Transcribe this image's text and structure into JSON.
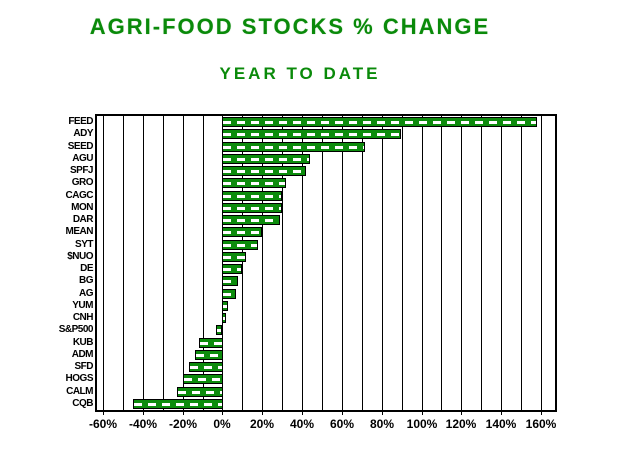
{
  "title": "AGRI-FOOD STOCKS % CHANGE",
  "subtitle": "YEAR TO DATE",
  "colors": {
    "title_green": "#0a8a0a",
    "bar_green": "#0d8c0d",
    "axis_black": "#000000",
    "background": "#ffffff"
  },
  "chart_data": {
    "type": "bar",
    "orientation": "horizontal",
    "title": "AGRI-FOOD STOCKS % CHANGE",
    "subtitle": "YEAR TO DATE",
    "xlabel": "",
    "ylabel": "",
    "value_unit": "%",
    "categories": [
      "FEED",
      "ADY",
      "SEED",
      "AGU",
      "SPFJ",
      "GRO",
      "CAGC",
      "MON",
      "DAR",
      "MEAN",
      "SYT",
      "$NUO",
      "DE",
      "BG",
      "AG",
      "YUM",
      "CNH",
      "S&P500",
      "KUB",
      "ADM",
      "SFD",
      "HOGS",
      "CALM",
      "CQB"
    ],
    "values": [
      158,
      90,
      72,
      44,
      42,
      32,
      30,
      30,
      29,
      20,
      18,
      12,
      10,
      8,
      7,
      3,
      2,
      -3,
      -12,
      -14,
      -17,
      -20,
      -23,
      -45
    ],
    "xlim": [
      -63,
      167
    ],
    "gridline_step": 10,
    "gridline_range": [
      -60,
      160
    ],
    "tick_label_step": 20,
    "tick_labels": [
      "-60%",
      "-40%",
      "-20%",
      "0%",
      "20%",
      "40%",
      "60%",
      "80%",
      "100%",
      "120%",
      "140%",
      "160%"
    ],
    "tick_values": [
      -60,
      -40,
      -20,
      0,
      20,
      40,
      60,
      80,
      100,
      120,
      140,
      160
    ],
    "grid": true,
    "legend": false,
    "baseline": 0
  }
}
